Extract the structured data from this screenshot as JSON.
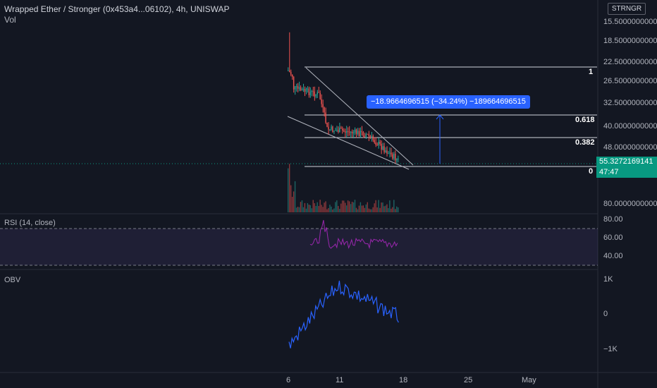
{
  "header": {
    "title": "Wrapped Ether / Stronger (0x453a4...06102), 4h, UNISWAP",
    "volume_label": "Vol",
    "ticker_badge": "STRNGR"
  },
  "price_axis": {
    "labels": [
      "15.5000000000",
      "18.5000000000",
      "22.5000000000",
      "26.5000000000",
      "32.5000000000",
      "40.0000000000",
      "48.0000000000",
      "80.0000000000"
    ]
  },
  "current_price": {
    "value": "55.3272169141",
    "countdown": "47:47",
    "color": "#089981"
  },
  "measure_tool": {
    "label": "−18.9664696515 (−34.24%) −189664696515",
    "color": "#2962ff"
  },
  "fib_levels": {
    "labels": [
      "1",
      "0.618",
      "0.382",
      "0"
    ]
  },
  "rsi": {
    "label": "RSI (14, close)",
    "axis_labels": [
      "80.00",
      "60.00",
      "40.00"
    ],
    "color": "#7e57c2"
  },
  "obv": {
    "label": "OBV",
    "axis_labels": [
      "1K",
      "0",
      "−1K"
    ],
    "color": "#2962ff"
  },
  "time_axis": {
    "labels": [
      "6",
      "11",
      "18",
      "25",
      "May"
    ]
  },
  "colors": {
    "background": "#131722",
    "up": "#26a69a",
    "down": "#ef5350"
  },
  "chart_data": {
    "type": "candlestick",
    "title": "Wrapped Ether / Stronger (0x453a4...06102), 4h, UNISWAP",
    "x_labels": [
      "6",
      "11",
      "18",
      "25",
      "May"
    ],
    "y_axis_inverted": true,
    "price_ticks": [
      15.5,
      18.5,
      22.5,
      26.5,
      32.5,
      40,
      48,
      80
    ],
    "last_price": 55.3272169141,
    "measured_move": {
      "change": -18.9664696515,
      "percent": -34.24
    },
    "fib_retracement": [
      1,
      0.618,
      0.382,
      0
    ],
    "rsi_range": [
      40,
      80
    ],
    "obv_range": [
      -1000,
      1000
    ]
  }
}
